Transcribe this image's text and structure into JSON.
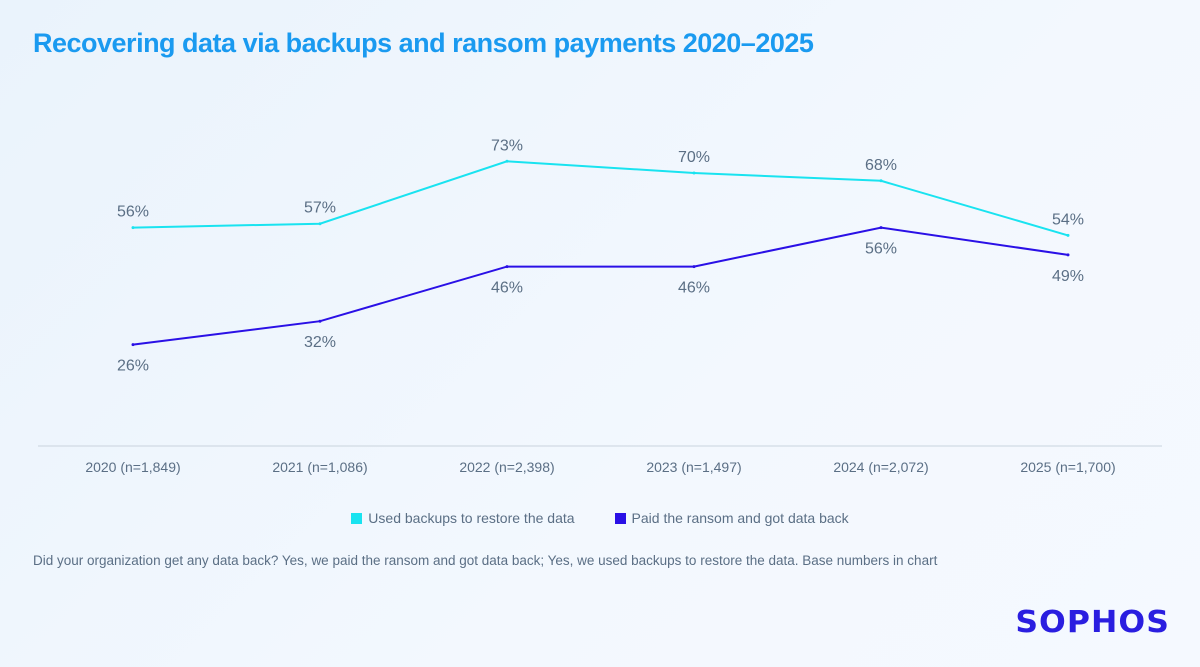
{
  "chart_data": {
    "type": "line",
    "title": "Recovering data via backups and ransom payments 2020–2025",
    "categories": [
      "2020 (n=1,849)",
      "2021 (n=1,086)",
      "2022 (n=2,398)",
      "2023 (n=1,497)",
      "2024 (n=2,072)",
      "2025 (n=1,700)"
    ],
    "series": [
      {
        "name": "Used backups to restore the data",
        "values": [
          56,
          57,
          73,
          70,
          68,
          54
        ],
        "color": "#19e3f0"
      },
      {
        "name": "Paid the ransom and got data back",
        "values": [
          26,
          32,
          46,
          46,
          56,
          49
        ],
        "color": "#2a10e6"
      }
    ],
    "value_suffix": "%",
    "ylim": [
      0,
      100
    ],
    "grid": false,
    "legend_position": "bottom"
  },
  "footnote": "Did your organization get any data back? Yes, we paid the ransom and got data back; Yes, we used backups to restore the data. Base numbers in chart",
  "logo": "SOPHOS"
}
